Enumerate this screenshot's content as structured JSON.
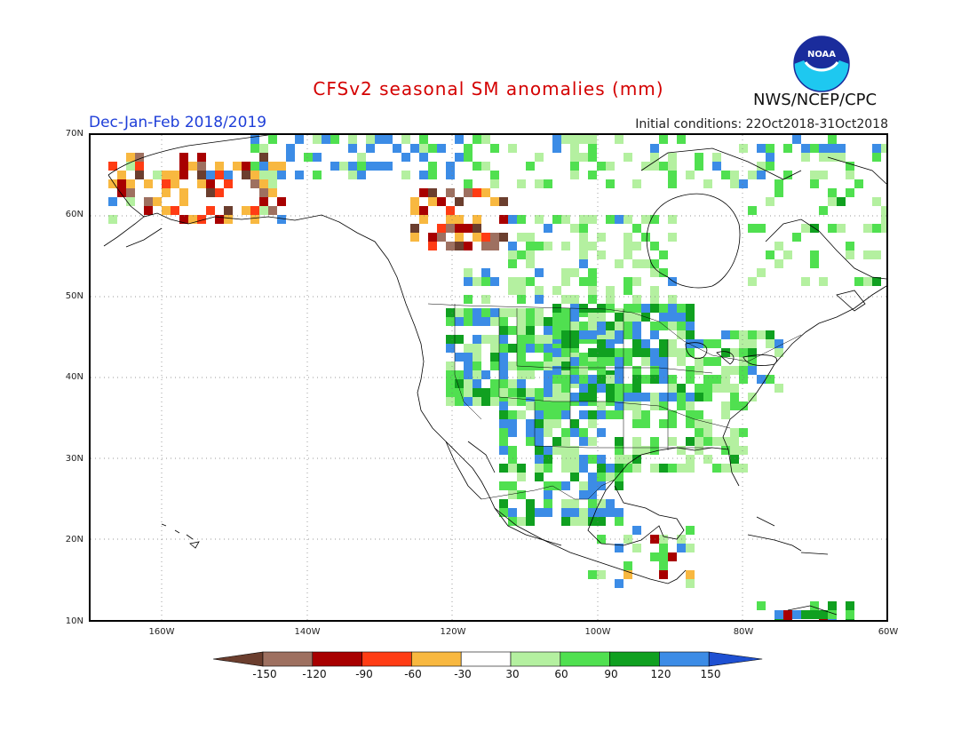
{
  "title": "CFSv2 seasonal SM anomalies (mm)",
  "season": "Dec-Jan-Feb 2018/2019",
  "initial_conditions": "Initial conditions: 22Oct2018-31Oct2018",
  "agency": "NWS/NCEP/CPC",
  "logo_text": "NOAA",
  "lat_labels": [
    "70N",
    "60N",
    "50N",
    "40N",
    "30N",
    "20N",
    "10N"
  ],
  "lon_labels": [
    "160W",
    "140W",
    "120W",
    "100W",
    "80W",
    "60W"
  ],
  "colorbar": {
    "labels": [
      "-150",
      "-120",
      "-90",
      "-60",
      "-30",
      "30",
      "60",
      "90",
      "120",
      "150"
    ],
    "colors": [
      "#6b3e2e",
      "#9e7060",
      "#a80000",
      "#ff3c14",
      "#f8b840",
      "#ffffff",
      "#b4f0a0",
      "#50e050",
      "#10a020",
      "#3c8ce6",
      "#1e50d2"
    ]
  },
  "legend_colors": {
    "ocean": "#ffffff",
    "coast": "#000000"
  }
}
